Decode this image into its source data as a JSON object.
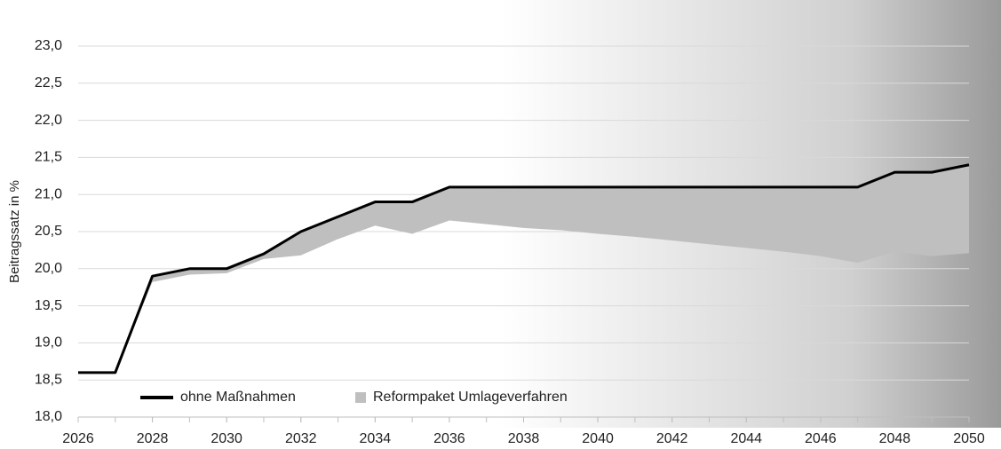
{
  "chart_data": {
    "type": "line",
    "y_label": "Beitragssatz in %",
    "x": [
      2026,
      2027,
      2028,
      2029,
      2030,
      2031,
      2032,
      2033,
      2034,
      2035,
      2036,
      2037,
      2038,
      2039,
      2040,
      2041,
      2042,
      2043,
      2044,
      2045,
      2046,
      2047,
      2048,
      2049,
      2050
    ],
    "series": [
      {
        "name": "ohne Maßnahmen",
        "color": "#000000",
        "values": [
          18.6,
          18.6,
          19.9,
          20.0,
          20.0,
          20.2,
          20.5,
          20.7,
          20.9,
          20.9,
          21.1,
          21.1,
          21.1,
          21.1,
          21.1,
          21.1,
          21.1,
          21.1,
          21.1,
          21.1,
          21.1,
          21.1,
          21.3,
          21.3,
          21.4
        ]
      },
      {
        "name": "Reformpaket Umlageverfahren",
        "color": "#bfbfbf",
        "values": [
          18.6,
          18.6,
          19.82,
          19.92,
          19.94,
          20.13,
          20.18,
          20.4,
          20.58,
          20.47,
          20.65,
          20.6,
          20.55,
          20.52,
          20.47,
          20.43,
          20.38,
          20.33,
          20.28,
          20.23,
          20.17,
          20.08,
          20.23,
          20.17,
          20.21
        ]
      }
    ],
    "xlim": [
      2026,
      2050
    ],
    "xticks": [
      2026,
      2028,
      2030,
      2032,
      2034,
      2036,
      2038,
      2040,
      2042,
      2044,
      2046,
      2048,
      2050
    ],
    "ylim": [
      18,
      23
    ],
    "yticks": [
      {
        "value": 18,
        "label": "18,0"
      },
      {
        "value": 18.5,
        "label": "18,5"
      },
      {
        "value": 19,
        "label": "19,0"
      },
      {
        "value": 19.5,
        "label": "19,5"
      },
      {
        "value": 20,
        "label": "20,0"
      },
      {
        "value": 20.5,
        "label": "20,5"
      },
      {
        "value": 21,
        "label": "21,0"
      },
      {
        "value": 21.5,
        "label": "21,5"
      },
      {
        "value": 22,
        "label": "22,0"
      },
      {
        "value": 22.5,
        "label": "22,5"
      },
      {
        "value": 23,
        "label": "23,0"
      }
    ],
    "grid": true
  }
}
